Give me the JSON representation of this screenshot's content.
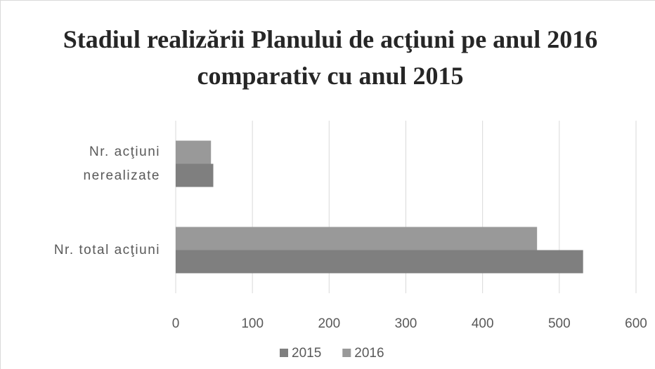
{
  "chart_data": {
    "type": "hbar",
    "title": "Stadiul realizării Planului de acţiuni pe anul 2016 comparativ cu anul 2015",
    "categories": [
      "Nr. total acţiuni",
      "Nr. acţiuni nerealizate"
    ],
    "series": [
      {
        "name": "2015",
        "color": "#7f7f7f",
        "values": [
          531,
          49
        ]
      },
      {
        "name": "2016",
        "color": "#999999",
        "values": [
          471,
          46
        ]
      }
    ],
    "xlim": [
      0,
      600
    ],
    "xticks": [
      0,
      100,
      200,
      300,
      400,
      500,
      600
    ],
    "grid": true,
    "legend": "bottom"
  }
}
